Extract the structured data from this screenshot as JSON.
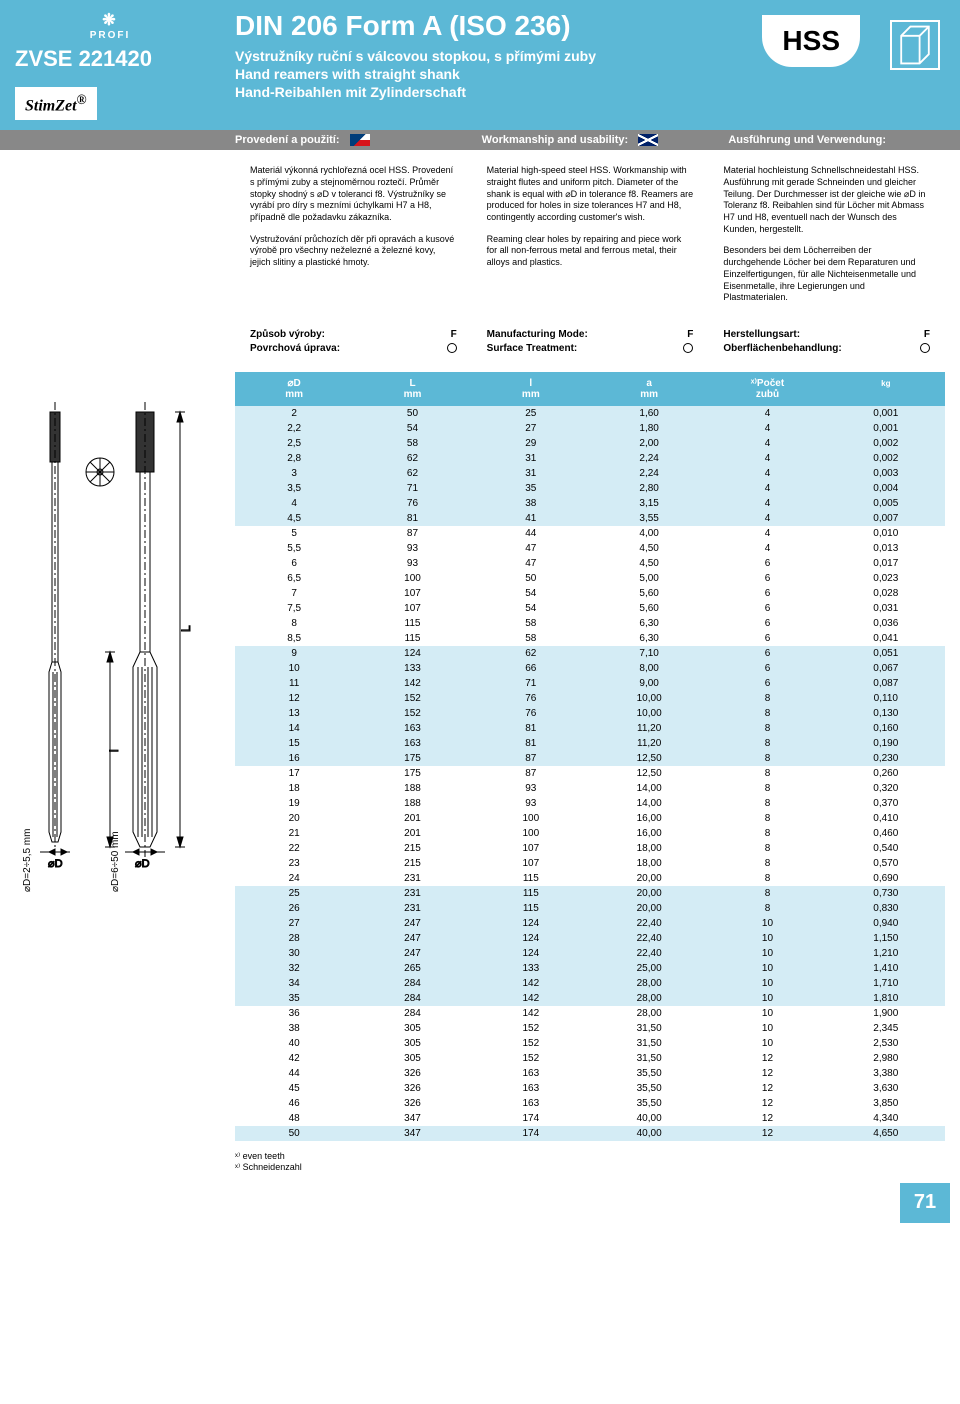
{
  "header": {
    "profi": "PROFI",
    "product_code": "ZVSE 221420",
    "logo": "StimZet",
    "title": "DIN 206 Form A (ISO 236)",
    "subtitle_cz": "Výstružníky ruční s válcovou stopkou, s přímými zuby",
    "subtitle_en": "Hand reamers with straight shank",
    "subtitle_de": "Hand-Reibahlen mit Zylinderschaft",
    "hss": "HSS"
  },
  "labels": {
    "cz": "Provedení a použití:",
    "en": "Workmanship and usability:",
    "de": "Ausführung und Verwendung:"
  },
  "descriptions": {
    "cz_p1": "Materiál výkonná rychlořezná ocel HSS. Provedení s přímými zuby a stejnoměrnou roztečí. Průměr stopky shodný s ⌀D v toleranci f8. Výstružníky se vyrábí pro díry s mezními úchylkami H7 a H8, případně dle požadavku zákazníka.",
    "cz_p2": "Vystružování průchozích děr při opravách a kusové výrobě pro všechny neželezné a železné kovy, jejich slitiny a plastické hmoty.",
    "en_p1": "Material high-speed steel HSS. Workmanship with straight flutes and uniform pitch. Diameter of the shank is equal with ⌀D in tolerance f8. Reamers are produced for holes in size tolerances H7 and H8, contingently according customer's wish.",
    "en_p2": "Reaming clear holes by repairing and piece work for all non-ferrous metal and ferrous metal, their alloys and plastics.",
    "de_p1": "Material hochleistung Schnellschneidestahl HSS. Ausführung mit gerade Schneinden und gleicher Teilung. Der Durchmesser ist der gleiche wie ⌀D in Toleranz f8. Reibahlen sind für Löcher mit Abmass H7 und H8, eventuell nach der Wunsch des Kunden, hergestellt.",
    "de_p2": "Besonders bei dem Löcherreiben der durchgehende Löcher bei dem Reparaturen und Einzelfertigungen, für alle Nichteisenmetalle und Eisenmetalle, ihre Legierungen und Plastmaterialen."
  },
  "modes": {
    "cz_m1": "Způsob výroby:",
    "cz_m2": "Povrchová úprava:",
    "en_m1": "Manufacturing Mode:",
    "en_m2": "Surface Treatment:",
    "de_m1": "Herstellungsart:",
    "de_m2": "Oberflächenbehandlung:",
    "val": "F"
  },
  "table": {
    "headers": [
      "⌀D\nmm",
      "L\nmm",
      "l\nmm",
      "a\nmm",
      "ˣ⁾Počet\nzubů",
      ""
    ],
    "shade_groups": [
      [
        0,
        7
      ],
      [
        16,
        23
      ],
      [
        32,
        39
      ],
      [
        48,
        54
      ]
    ],
    "rows": [
      [
        "2",
        "50",
        "25",
        "1,60",
        "4",
        "0,001"
      ],
      [
        "2,2",
        "54",
        "27",
        "1,80",
        "4",
        "0,001"
      ],
      [
        "2,5",
        "58",
        "29",
        "2,00",
        "4",
        "0,002"
      ],
      [
        "2,8",
        "62",
        "31",
        "2,24",
        "4",
        "0,002"
      ],
      [
        "3",
        "62",
        "31",
        "2,24",
        "4",
        "0,003"
      ],
      [
        "3,5",
        "71",
        "35",
        "2,80",
        "4",
        "0,004"
      ],
      [
        "4",
        "76",
        "38",
        "3,15",
        "4",
        "0,005"
      ],
      [
        "4,5",
        "81",
        "41",
        "3,55",
        "4",
        "0,007"
      ],
      [
        "5",
        "87",
        "44",
        "4,00",
        "4",
        "0,010"
      ],
      [
        "5,5",
        "93",
        "47",
        "4,50",
        "4",
        "0,013"
      ],
      [
        "6",
        "93",
        "47",
        "4,50",
        "6",
        "0,017"
      ],
      [
        "6,5",
        "100",
        "50",
        "5,00",
        "6",
        "0,023"
      ],
      [
        "7",
        "107",
        "54",
        "5,60",
        "6",
        "0,028"
      ],
      [
        "7,5",
        "107",
        "54",
        "5,60",
        "6",
        "0,031"
      ],
      [
        "8",
        "115",
        "58",
        "6,30",
        "6",
        "0,036"
      ],
      [
        "8,5",
        "115",
        "58",
        "6,30",
        "6",
        "0,041"
      ],
      [
        "9",
        "124",
        "62",
        "7,10",
        "6",
        "0,051"
      ],
      [
        "10",
        "133",
        "66",
        "8,00",
        "6",
        "0,067"
      ],
      [
        "11",
        "142",
        "71",
        "9,00",
        "6",
        "0,087"
      ],
      [
        "12",
        "152",
        "76",
        "10,00",
        "8",
        "0,110"
      ],
      [
        "13",
        "152",
        "76",
        "10,00",
        "8",
        "0,130"
      ],
      [
        "14",
        "163",
        "81",
        "11,20",
        "8",
        "0,160"
      ],
      [
        "15",
        "163",
        "81",
        "11,20",
        "8",
        "0,190"
      ],
      [
        "16",
        "175",
        "87",
        "12,50",
        "8",
        "0,230"
      ],
      [
        "17",
        "175",
        "87",
        "12,50",
        "8",
        "0,260"
      ],
      [
        "18",
        "188",
        "93",
        "14,00",
        "8",
        "0,320"
      ],
      [
        "19",
        "188",
        "93",
        "14,00",
        "8",
        "0,370"
      ],
      [
        "20",
        "201",
        "100",
        "16,00",
        "8",
        "0,410"
      ],
      [
        "21",
        "201",
        "100",
        "16,00",
        "8",
        "0,460"
      ],
      [
        "22",
        "215",
        "107",
        "18,00",
        "8",
        "0,540"
      ],
      [
        "23",
        "215",
        "107",
        "18,00",
        "8",
        "0,570"
      ],
      [
        "24",
        "231",
        "115",
        "20,00",
        "8",
        "0,690"
      ],
      [
        "25",
        "231",
        "115",
        "20,00",
        "8",
        "0,730"
      ],
      [
        "26",
        "231",
        "115",
        "20,00",
        "8",
        "0,830"
      ],
      [
        "27",
        "247",
        "124",
        "22,40",
        "10",
        "0,940"
      ],
      [
        "28",
        "247",
        "124",
        "22,40",
        "10",
        "1,150"
      ],
      [
        "30",
        "247",
        "124",
        "22,40",
        "10",
        "1,210"
      ],
      [
        "32",
        "265",
        "133",
        "25,00",
        "10",
        "1,410"
      ],
      [
        "34",
        "284",
        "142",
        "28,00",
        "10",
        "1,710"
      ],
      [
        "35",
        "284",
        "142",
        "28,00",
        "10",
        "1,810"
      ],
      [
        "36",
        "284",
        "142",
        "28,00",
        "10",
        "1,900"
      ],
      [
        "38",
        "305",
        "152",
        "31,50",
        "10",
        "2,345"
      ],
      [
        "40",
        "305",
        "152",
        "31,50",
        "10",
        "2,530"
      ],
      [
        "42",
        "305",
        "152",
        "31,50",
        "12",
        "2,980"
      ],
      [
        "44",
        "326",
        "163",
        "35,50",
        "12",
        "3,380"
      ],
      [
        "45",
        "326",
        "163",
        "35,50",
        "12",
        "3,630"
      ],
      [
        "46",
        "326",
        "163",
        "35,50",
        "12",
        "3,850"
      ],
      [
        "48",
        "347",
        "174",
        "40,00",
        "12",
        "4,340"
      ],
      [
        "50",
        "347",
        "174",
        "40,00",
        "12",
        "4,650"
      ]
    ]
  },
  "diagram": {
    "label1": "⌀D=2÷5,5 mm",
    "label2": "⌀D=6÷50 mm",
    "d_label": "⌀D"
  },
  "footnotes": {
    "f1": "ˣ⁾ even teeth",
    "f2": "ˣ⁾ Schneidenzahl"
  },
  "page": "71",
  "colors": {
    "brand": "#5cb8d6",
    "shade": "#d4ecf5",
    "gray": "#888"
  }
}
